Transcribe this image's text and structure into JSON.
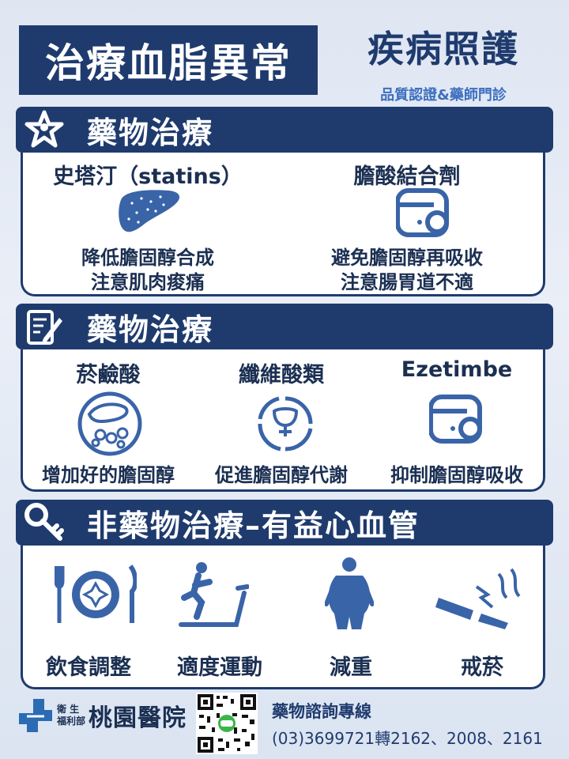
{
  "header": {
    "title": "治療血脂異常",
    "brand_title": "疾病照護",
    "brand_subtitle": "品質認證&藥師門診"
  },
  "sections": [
    {
      "heading": "藥物治療",
      "icon": "star-person-icon",
      "items": [
        {
          "title": "史塔汀（statins）",
          "icon": "liver-icon",
          "desc": [
            "降低膽固醇合成",
            "注意肌肉痠痛"
          ]
        },
        {
          "title": "膽酸結合劑",
          "icon": "intestine-icon",
          "desc": [
            "避免膽固醇再吸收",
            "注意腸胃道不適"
          ]
        }
      ]
    },
    {
      "heading": "藥物治療",
      "icon": "notepad-pencil-icon",
      "items": [
        {
          "title": "菸鹼酸",
          "icon": "blood-vessel-icon",
          "desc": [
            "增加好的膽固醇"
          ]
        },
        {
          "title": "纖維酸類",
          "icon": "metabolism-cycle-icon",
          "desc": [
            "促進膽固醇代謝"
          ]
        },
        {
          "title": "Ezetimbe",
          "icon": "intestine-icon",
          "desc": [
            "抑制膽固醇吸收"
          ]
        }
      ]
    },
    {
      "heading": "非藥物治療–有益心血管",
      "icon": "key-icon",
      "items": [
        {
          "title": "飲食調整",
          "icon": "plate-cutlery-icon"
        },
        {
          "title": "適度運動",
          "icon": "treadmill-icon"
        },
        {
          "title": "減重",
          "icon": "overweight-person-icon"
        },
        {
          "title": "戒菸",
          "icon": "broken-cigarette-icon"
        }
      ]
    }
  ],
  "footer": {
    "logo_small_1": "衛 生",
    "logo_small_2": "福利部",
    "logo_name": "桃園醫院",
    "hotline_title": "藥物諮詢專線",
    "hotline_number": "(03)3699721轉2162、2008、2161"
  },
  "colors": {
    "navy": "#1f3b6e",
    "accent_blue": "#3d6fbf",
    "icon_blue": "#3a64a8"
  }
}
